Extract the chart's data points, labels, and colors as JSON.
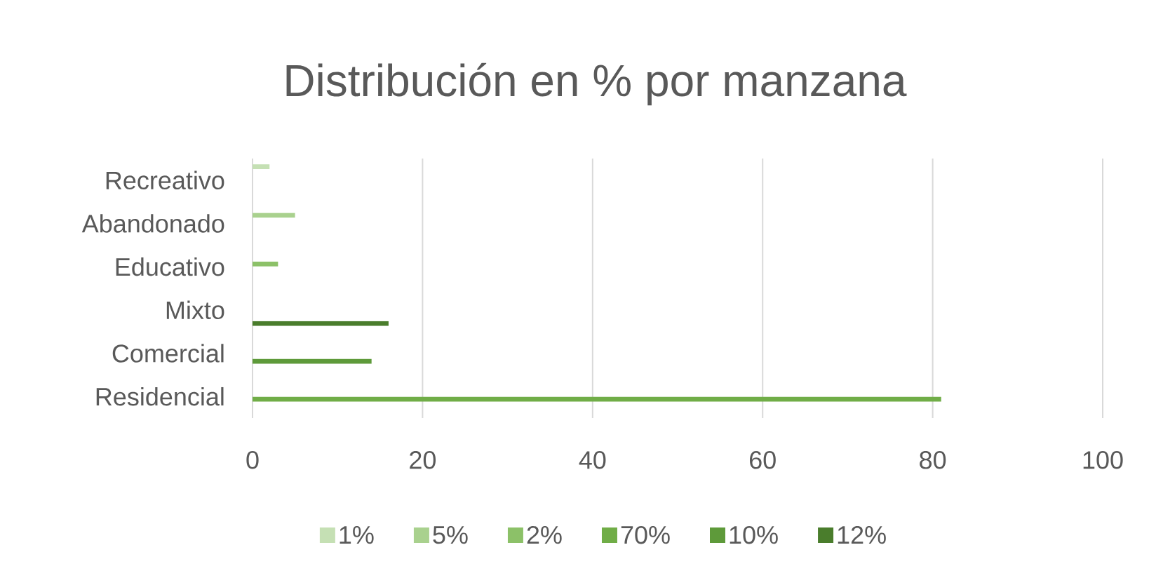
{
  "chart_data": {
    "type": "bar",
    "orientation": "horizontal",
    "title": "Distribución en % por manzana",
    "categories": [
      "Recreativo",
      "Abandonado",
      "Educativo",
      "Mixto",
      "Comercial",
      "Residencial"
    ],
    "series": [
      {
        "name": "1%",
        "color": "#c5e0b4",
        "values": [
          2,
          null,
          null,
          null,
          null,
          null
        ]
      },
      {
        "name": "5%",
        "color": "#a9d18e",
        "values": [
          null,
          5,
          null,
          null,
          null,
          null
        ]
      },
      {
        "name": "2%",
        "color": "#8cc168",
        "values": [
          null,
          null,
          3,
          null,
          null,
          null
        ]
      },
      {
        "name": "70%",
        "color": "#70ad47",
        "values": [
          null,
          null,
          null,
          null,
          null,
          81
        ]
      },
      {
        "name": "10%",
        "color": "#5e9a3a",
        "values": [
          null,
          null,
          null,
          null,
          14,
          null
        ]
      },
      {
        "name": "12%",
        "color": "#4a7d2c",
        "values": [
          null,
          null,
          null,
          16,
          null,
          null
        ]
      }
    ],
    "xlim": [
      0,
      100
    ],
    "xticks": [
      0,
      20,
      40,
      60,
      80,
      100
    ],
    "grid": "x",
    "legend": "bottom"
  }
}
